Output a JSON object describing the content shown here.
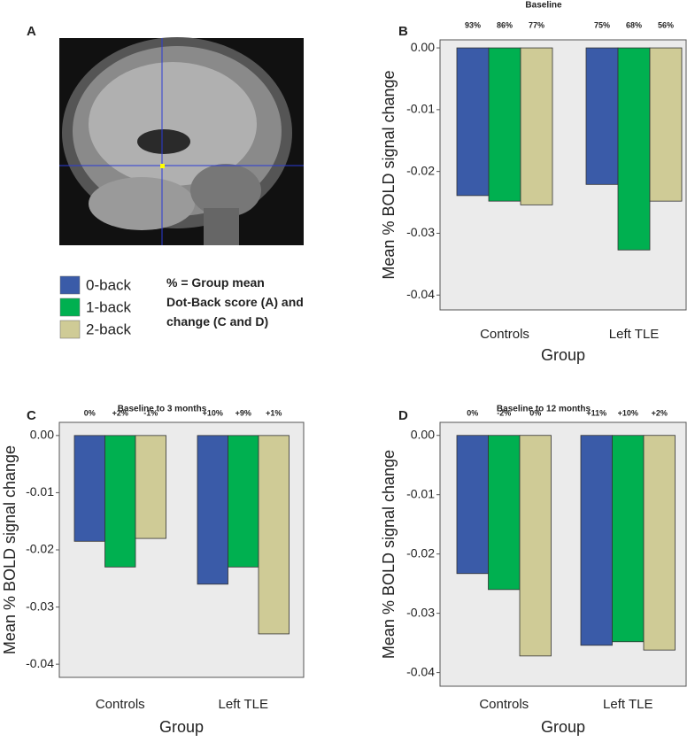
{
  "panel_a": {
    "panel": "A",
    "note": "% = Group mean  Dot-Back score (A) and change (C and D)"
  },
  "chart_data": [
    {
      "type": "bar",
      "panel": "B",
      "title": "Baseline",
      "ylabel": "Mean % BOLD signal change",
      "xlabel": "Group",
      "categories": [
        "Controls",
        "Left TLE"
      ],
      "series": [
        {
          "name": "0-back",
          "color": "#3a5ba8",
          "values": [
            -0.0239,
            -0.0221
          ],
          "score_labels": [
            "93%",
            "75%"
          ]
        },
        {
          "name": "1-back",
          "color": "#00b050",
          "values": [
            -0.0248,
            -0.0327
          ],
          "score_labels": [
            "86%",
            "68%"
          ]
        },
        {
          "name": "2-back",
          "color": "#cfcb96",
          "values": [
            -0.0254,
            -0.0248
          ],
          "score_labels": [
            "77%",
            "56%"
          ]
        }
      ],
      "ylim": [
        -0.0424,
        0.0013
      ],
      "yticks": [
        {
          "value": 0,
          "label": "0.00"
        },
        {
          "value": -0.01,
          "label": "-0.01"
        },
        {
          "value": -0.02,
          "label": "-0.02"
        },
        {
          "value": -0.03,
          "label": "-0.03"
        },
        {
          "value": -0.04,
          "label": "-0.04"
        }
      ]
    },
    {
      "type": "bar",
      "panel": "C",
      "title": "Baseline to 3 months",
      "ylabel": "Mean % BOLD signal change",
      "xlabel": "Group",
      "categories": [
        "Controls",
        "Left TLE"
      ],
      "series": [
        {
          "color": "#3a5ba8",
          "values": [
            -0.0185,
            -0.026
          ],
          "score_labels": [
            "0%",
            "+10%"
          ]
        },
        {
          "color": "#00b050",
          "values": [
            -0.023,
            -0.023
          ],
          "score_labels": [
            "+2%",
            "+9%"
          ]
        },
        {
          "color": "#cfcb96",
          "values": [
            -0.018,
            -0.0347
          ],
          "score_labels": [
            "-1%",
            "+1%"
          ]
        }
      ],
      "ylim": [
        -0.0423,
        0.0023
      ],
      "yticks": [
        {
          "value": 0,
          "label": "0.00"
        },
        {
          "value": -0.01,
          "label": "-0.01"
        },
        {
          "value": -0.02,
          "label": "-0.02"
        },
        {
          "value": -0.03,
          "label": "-0.03"
        },
        {
          "value": -0.04,
          "label": "-0.04"
        }
      ]
    },
    {
      "type": "bar",
      "panel": "D",
      "title": "Baseline to 12  months",
      "ylabel": "Mean % BOLD signal change",
      "xlabel": "Group",
      "categories": [
        "Controls",
        "Left TLE"
      ],
      "series": [
        {
          "color": "#3a5ba8",
          "values": [
            -0.0233,
            -0.0354
          ],
          "score_labels": [
            "0%",
            "+11%"
          ]
        },
        {
          "color": "#00b050",
          "values": [
            -0.026,
            -0.0348
          ],
          "score_labels": [
            "-2%",
            "+10%"
          ]
        },
        {
          "color": "#cfcb96",
          "values": [
            -0.0372,
            -0.0362
          ],
          "score_labels": [
            "0%",
            "+2%"
          ]
        }
      ],
      "ylim": [
        -0.0423,
        0.0022
      ],
      "yticks": [
        {
          "value": 0,
          "label": "0.00"
        },
        {
          "value": -0.01,
          "label": "-0.01"
        },
        {
          "value": -0.02,
          "label": "-0.02"
        },
        {
          "value": -0.03,
          "label": "-0.03"
        },
        {
          "value": -0.04,
          "label": "-0.04"
        }
      ]
    }
  ]
}
